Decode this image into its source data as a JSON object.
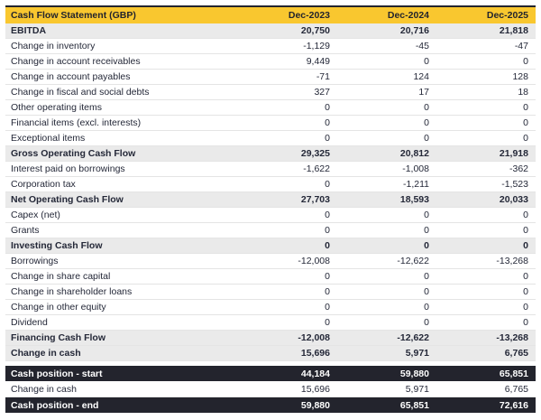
{
  "colors": {
    "header_yellow": "#f9c72f",
    "dark_navy": "#23242d",
    "section_gray": "#eaeaea",
    "row_border": "#e4e4e4"
  },
  "chart_data": {
    "type": "table",
    "title": "Cash Flow Statement (GBP)",
    "columns": [
      "Dec-2023",
      "Dec-2024",
      "Dec-2025"
    ],
    "rows": [
      {
        "label": "EBITDA",
        "style": "section",
        "values": [
          20750,
          20716,
          21818
        ]
      },
      {
        "label": "Change in inventory",
        "style": "normal",
        "values": [
          -1129,
          -45,
          -47
        ]
      },
      {
        "label": "Change in account receivables",
        "style": "normal",
        "values": [
          9449,
          0,
          0
        ]
      },
      {
        "label": "Change in account payables",
        "style": "normal",
        "values": [
          -71,
          124,
          128
        ]
      },
      {
        "label": "Change in fiscal and social debts",
        "style": "normal",
        "values": [
          327,
          17,
          18
        ]
      },
      {
        "label": "Other operating items",
        "style": "normal",
        "values": [
          0,
          0,
          0
        ]
      },
      {
        "label": "Financial items (excl. interests)",
        "style": "normal",
        "values": [
          0,
          0,
          0
        ]
      },
      {
        "label": "Exceptional items",
        "style": "normal",
        "values": [
          0,
          0,
          0
        ]
      },
      {
        "label": "Gross Operating Cash Flow",
        "style": "section",
        "values": [
          29325,
          20812,
          21918
        ]
      },
      {
        "label": "Interest paid on borrowings",
        "style": "normal",
        "values": [
          -1622,
          -1008,
          -362
        ]
      },
      {
        "label": "Corporation tax",
        "style": "normal",
        "values": [
          0,
          -1211,
          -1523
        ]
      },
      {
        "label": "Net Operating Cash Flow",
        "style": "section",
        "values": [
          27703,
          18593,
          20033
        ]
      },
      {
        "label": "Capex (net)",
        "style": "normal",
        "values": [
          0,
          0,
          0
        ]
      },
      {
        "label": "Grants",
        "style": "normal",
        "values": [
          0,
          0,
          0
        ]
      },
      {
        "label": "Investing Cash Flow",
        "style": "section",
        "values": [
          0,
          0,
          0
        ]
      },
      {
        "label": "Borrowings",
        "style": "normal",
        "values": [
          -12008,
          -12622,
          -13268
        ]
      },
      {
        "label": "Change in share capital",
        "style": "normal",
        "values": [
          0,
          0,
          0
        ]
      },
      {
        "label": "Change in shareholder loans",
        "style": "normal",
        "values": [
          0,
          0,
          0
        ]
      },
      {
        "label": "Change in other equity",
        "style": "normal",
        "values": [
          0,
          0,
          0
        ]
      },
      {
        "label": "Dividend",
        "style": "normal",
        "values": [
          0,
          0,
          0
        ]
      },
      {
        "label": "Financing Cash Flow",
        "style": "section",
        "values": [
          -12008,
          -12622,
          -13268
        ]
      },
      {
        "label": "Change in cash",
        "style": "section",
        "values": [
          15696,
          5971,
          6765
        ]
      }
    ],
    "footer_rows": [
      {
        "label": "Cash position - start",
        "style": "dark",
        "values": [
          44184,
          59880,
          65851
        ]
      },
      {
        "label": "Change in cash",
        "style": "normal",
        "values": [
          15696,
          5971,
          6765
        ]
      },
      {
        "label": "Cash position - end",
        "style": "dark",
        "values": [
          59880,
          65851,
          72616
        ]
      }
    ]
  }
}
